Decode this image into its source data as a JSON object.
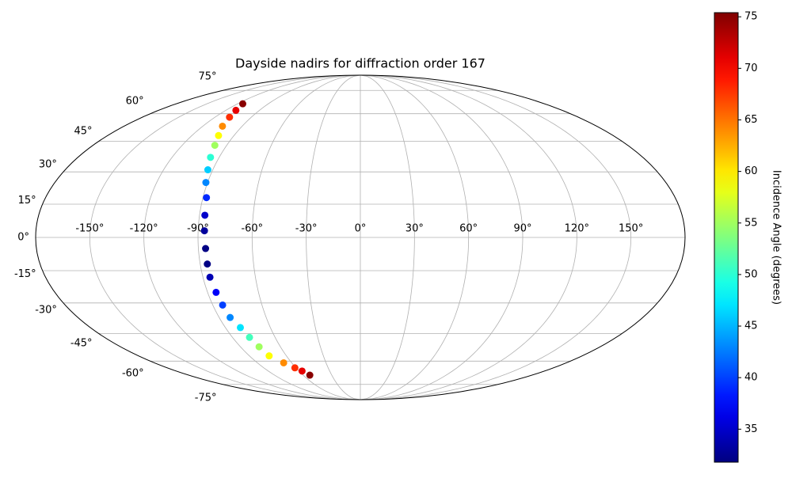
{
  "chart_data": {
    "type": "scatter",
    "projection": "mollweide",
    "title": "Dayside nadirs for diffraction order 167",
    "grid": true,
    "xlim": [
      -180,
      180
    ],
    "ylim": [
      -90,
      90
    ],
    "xticks": [
      {
        "value": -150,
        "label": "-150°"
      },
      {
        "value": -120,
        "label": "-120°"
      },
      {
        "value": -90,
        "label": "-90°"
      },
      {
        "value": -60,
        "label": "-60°"
      },
      {
        "value": -30,
        "label": "-30°"
      },
      {
        "value": 0,
        "label": "0°"
      },
      {
        "value": 30,
        "label": "30°"
      },
      {
        "value": 60,
        "label": "60°"
      },
      {
        "value": 90,
        "label": "90°"
      },
      {
        "value": 120,
        "label": "120°"
      },
      {
        "value": 150,
        "label": "150°"
      }
    ],
    "yticks": [
      {
        "value": -75,
        "label": "-75°"
      },
      {
        "value": -60,
        "label": "-60°"
      },
      {
        "value": -45,
        "label": "-45°"
      },
      {
        "value": -30,
        "label": "-30°"
      },
      {
        "value": -15,
        "label": "-15°"
      },
      {
        "value": 0,
        "label": "0°"
      },
      {
        "value": 15,
        "label": "15°"
      },
      {
        "value": 30,
        "label": "30°"
      },
      {
        "value": 45,
        "label": "45°"
      },
      {
        "value": 60,
        "label": "60°"
      },
      {
        "value": 75,
        "label": "75°"
      }
    ],
    "series": [
      {
        "x": [
          -115,
          -111,
          -108,
          -105,
          -101,
          -98,
          -95.5,
          -93,
          -91,
          -88,
          -87,
          -86.5,
          -86,
          -86,
          -86,
          -85,
          -84,
          -83,
          -80,
          -78,
          -76,
          -74,
          -67,
          -61,
          -57,
          -53
        ],
        "y": [
          66,
          62,
          58,
          53,
          48,
          43,
          37,
          31,
          25,
          18,
          10,
          3,
          -5,
          -12,
          -18,
          -25,
          -31,
          -37,
          -42,
          -47,
          -52,
          -57,
          -61,
          -64,
          -66,
          -68.6
        ],
        "c": [
          75,
          71,
          68,
          64,
          59,
          55,
          50,
          46,
          43,
          39,
          35,
          33,
          32,
          32,
          34,
          37,
          40,
          43,
          47,
          51,
          55,
          59,
          64,
          68,
          71,
          75
        ]
      }
    ],
    "colorbar": {
      "label": "Incidence Angle (degrees)",
      "colormap": "jet",
      "clim": [
        31.8,
        75.4
      ],
      "ticks": [
        35,
        40,
        45,
        50,
        55,
        60,
        65,
        70,
        75
      ]
    }
  }
}
